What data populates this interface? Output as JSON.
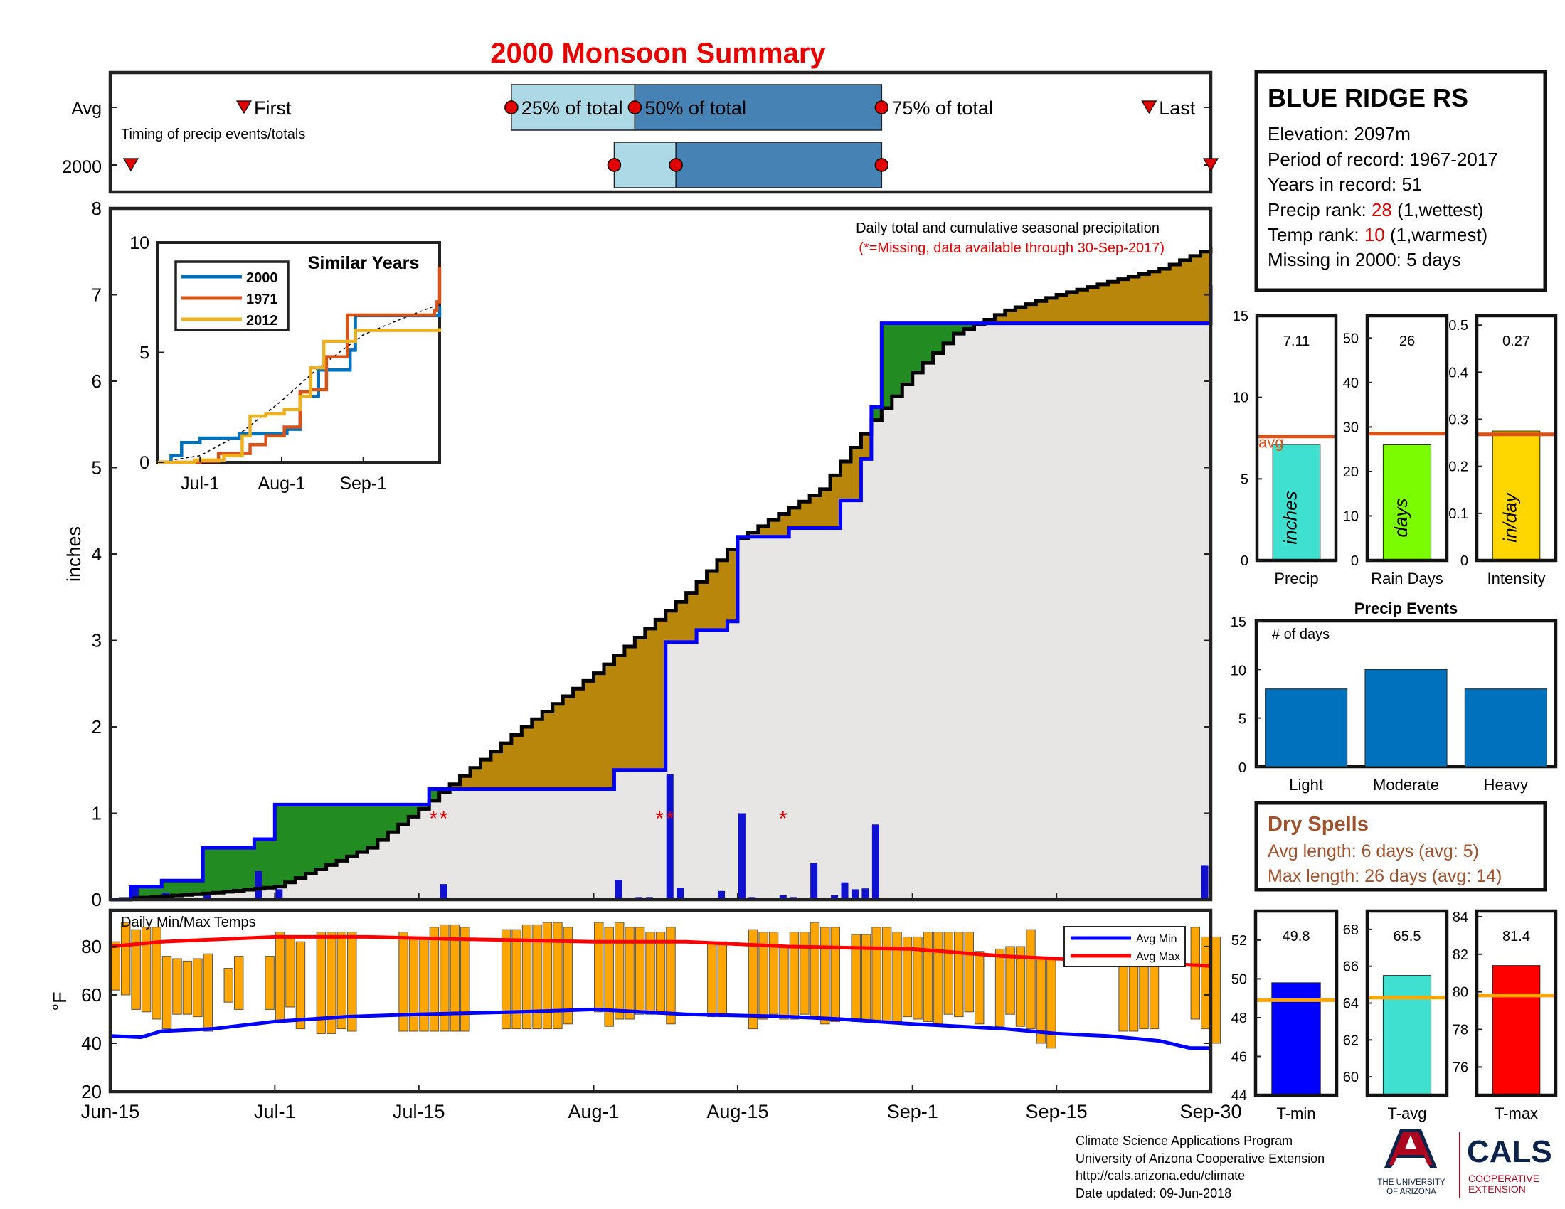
{
  "title": "2000 Monsoon Summary",
  "footer": {
    "line1": "Climate Science Applications Program",
    "line2": "University of Arizona Cooperative Extension",
    "line3": "http://cals.arizona.edu/climate",
    "line4": "Date updated: 09-Jun-2018",
    "logo_text_1": "THE UNIVERSITY",
    "logo_text_2": "OF ARIZONA",
    "logo_cals": "CALS",
    "logo_coop_1": "COOPERATIVE",
    "logo_coop_2": "EXTENSION"
  },
  "colors": {
    "title_red": "#e60000",
    "light_blue": "#add8e6",
    "steel_blue": "#4682b4",
    "green_fill": "#228b22",
    "brown_fill": "#b8860b",
    "bg_gray": "#e8e6e5",
    "blue_line": "#0000ff",
    "bar_blue": "#1010d0",
    "orange": "#ffa500",
    "avg_line": "#d95319",
    "precip_bar": "#40e0d0",
    "days_bar": "#7cfc00",
    "intensity_bar": "#ffd700",
    "events_bar": "#0072bd",
    "dry_spell_brown": "#a0522d",
    "arizona_red": "#ab0520",
    "arizona_navy": "#0c234b"
  },
  "chart_data": [
    {
      "id": "timing",
      "type": "timeline",
      "rows": [
        "Avg",
        "2000"
      ],
      "subtitle": "Timing of precip events/totals",
      "labels": {
        "first": "First",
        "q25": "25% of total",
        "q50": "50% of total",
        "q75": "75% of total",
        "last": "Last"
      },
      "avg": {
        "first": "2000-06-28",
        "q25": "2000-07-24",
        "q50": "2000-08-05",
        "q75": "2000-08-29",
        "last": "2000-09-24"
      },
      "year": {
        "first": "2000-06-17",
        "q25": "2000-08-03",
        "q50": "2000-08-09",
        "q75": "2000-08-29",
        "last": "2000-09-30"
      }
    },
    {
      "id": "cumulative",
      "type": "area",
      "ylabel": "inches",
      "ylim": [
        0,
        8
      ],
      "yticks": [
        0,
        1,
        2,
        3,
        4,
        5,
        6,
        7,
        8
      ],
      "xlim": [
        "2000-06-15",
        "2000-09-30"
      ],
      "xticks": [
        "Jun-15",
        "Jul-1",
        "Jul-15",
        "Aug-1",
        "Aug-15",
        "Sep-1",
        "Sep-15",
        "Sep-30"
      ],
      "xtick_dates": [
        "2000-06-15",
        "2000-07-01",
        "2000-07-15",
        "2000-08-01",
        "2000-08-15",
        "2000-09-01",
        "2000-09-15",
        "2000-09-30"
      ],
      "annotation": "Daily total and cumulative seasonal precipitation",
      "annotation_missing": "(*=Missing, data available through 30-Sep-2017)",
      "average_cumulative": {
        "x": [
          "2000-06-15",
          "2000-06-25",
          "2000-07-01",
          "2000-07-10",
          "2000-07-15",
          "2000-07-25",
          "2000-08-01",
          "2000-08-10",
          "2000-08-15",
          "2000-08-23",
          "2000-08-28",
          "2000-09-01",
          "2000-09-05",
          "2000-09-10",
          "2000-09-15",
          "2000-09-20",
          "2000-09-25",
          "2000-09-30"
        ],
        "y": [
          0.0,
          0.08,
          0.15,
          0.6,
          1.05,
          2.0,
          2.62,
          3.55,
          4.18,
          4.75,
          5.55,
          6.1,
          6.55,
          6.82,
          7.0,
          7.15,
          7.3,
          7.55
        ]
      },
      "year_cumulative": {
        "x": [
          "2000-06-15",
          "2000-06-17",
          "2000-06-20",
          "2000-06-24",
          "2000-06-29",
          "2000-07-01",
          "2000-07-14",
          "2000-07-16",
          "2000-08-03",
          "2000-08-08",
          "2000-08-11",
          "2000-08-14",
          "2000-08-15",
          "2000-08-20",
          "2000-08-25",
          "2000-08-27",
          "2000-08-28",
          "2000-08-29",
          "2000-09-29",
          "2000-09-30"
        ],
        "y": [
          0.0,
          0.15,
          0.22,
          0.6,
          0.7,
          1.1,
          1.1,
          1.28,
          1.5,
          2.98,
          3.12,
          3.22,
          4.2,
          4.3,
          4.62,
          5.1,
          5.7,
          6.67,
          6.67,
          7.11
        ]
      },
      "daily_precip": {
        "x": [
          "2000-06-17",
          "2000-06-18",
          "2000-06-20",
          "2000-06-24",
          "2000-06-29",
          "2000-07-01",
          "2000-07-17",
          "2000-08-03",
          "2000-08-05",
          "2000-08-06",
          "2000-08-08",
          "2000-08-09",
          "2000-08-13",
          "2000-08-15",
          "2000-08-16",
          "2000-08-19",
          "2000-08-20",
          "2000-08-22",
          "2000-08-24",
          "2000-08-25",
          "2000-08-26",
          "2000-08-27",
          "2000-08-28",
          "2000-09-29"
        ],
        "y": [
          0.15,
          0.03,
          0.08,
          0.05,
          0.33,
          0.12,
          0.18,
          0.23,
          0.03,
          0.03,
          1.45,
          0.14,
          0.1,
          1.0,
          0.03,
          0.05,
          0.03,
          0.42,
          0.05,
          0.2,
          0.12,
          0.13,
          0.87,
          0.4
        ]
      },
      "missing_days": [
        "2000-07-16",
        "2000-07-17",
        "2000-08-07",
        "2000-08-08",
        "2000-08-19"
      ],
      "missing_marker": "*"
    },
    {
      "id": "similar_years",
      "type": "line",
      "title": "Similar Years",
      "ylim": [
        0,
        10
      ],
      "yticks": [
        0,
        5,
        10
      ],
      "xticks": [
        "Jul-1",
        "Aug-1",
        "Sep-1"
      ],
      "xtick_dates": [
        "2000-07-01",
        "2000-08-01",
        "2000-09-01"
      ],
      "xlim": [
        "2000-06-15",
        "2000-09-30"
      ],
      "series": [
        {
          "name": "2000",
          "color": "#0072bd",
          "x": [
            "2000-06-15",
            "2000-06-20",
            "2000-06-24",
            "2000-07-01",
            "2000-07-14",
            "2000-07-16",
            "2000-08-03",
            "2000-08-08",
            "2000-08-15",
            "2000-08-27",
            "2000-08-29",
            "2000-09-29",
            "2000-09-30"
          ],
          "y": [
            0,
            0.3,
            0.9,
            1.1,
            1.1,
            1.3,
            1.5,
            3.0,
            4.2,
            5.1,
            6.67,
            6.67,
            7.11
          ]
        },
        {
          "name": "1971",
          "color": "#d95319",
          "x": [
            "2000-06-15",
            "2000-07-01",
            "2000-07-08",
            "2000-07-20",
            "2000-07-26",
            "2000-08-02",
            "2000-08-08",
            "2000-08-12",
            "2000-08-18",
            "2000-08-26",
            "2000-09-28",
            "2000-09-29",
            "2000-09-30"
          ],
          "y": [
            0,
            0.05,
            0.4,
            0.8,
            1.2,
            1.6,
            3.2,
            3.3,
            4.8,
            6.7,
            6.9,
            7.3,
            8.9
          ]
        },
        {
          "name": "2012",
          "color": "#edb120",
          "x": [
            "2000-06-15",
            "2000-06-29",
            "2000-07-10",
            "2000-07-17",
            "2000-07-20",
            "2000-07-26",
            "2000-08-02",
            "2000-08-08",
            "2000-08-12",
            "2000-08-17",
            "2000-08-29",
            "2000-09-30"
          ],
          "y": [
            0,
            0.1,
            0.3,
            1.2,
            2.1,
            2.2,
            2.4,
            3.0,
            4.3,
            5.5,
            6.0,
            6.1
          ]
        }
      ],
      "average_dashed": {
        "x": [
          "2000-06-15",
          "2000-07-01",
          "2000-07-15",
          "2000-08-01",
          "2000-08-15",
          "2000-09-01",
          "2000-09-15",
          "2000-09-30"
        ],
        "y": [
          0,
          0.3,
          1.2,
          2.8,
          4.3,
          5.8,
          6.5,
          7.2
        ]
      }
    },
    {
      "id": "temps",
      "type": "bar",
      "title": "Daily Min/Max Temps",
      "ylabel": "°F",
      "ylim": [
        20,
        95
      ],
      "yticks": [
        20,
        40,
        60,
        80
      ],
      "legend": [
        "Avg Min",
        "Avg Max"
      ],
      "legend_position": "top-right",
      "avg_min": {
        "x": [
          "2000-06-15",
          "2000-06-18",
          "2000-06-20",
          "2000-06-25",
          "2000-07-01",
          "2000-07-08",
          "2000-07-15",
          "2000-07-25",
          "2000-08-01",
          "2000-08-10",
          "2000-08-20",
          "2000-08-25",
          "2000-09-01",
          "2000-09-10",
          "2000-09-15",
          "2000-09-20",
          "2000-09-25",
          "2000-09-28",
          "2000-09-30"
        ],
        "y": [
          43,
          42.5,
          45,
          46,
          49,
          51,
          52,
          53,
          54,
          52,
          51,
          50,
          48,
          46,
          44,
          43,
          41,
          38,
          38
        ]
      },
      "avg_max": {
        "x": [
          "2000-06-15",
          "2000-06-20",
          "2000-07-01",
          "2000-07-10",
          "2000-07-20",
          "2000-08-01",
          "2000-08-10",
          "2000-08-20",
          "2000-09-01",
          "2000-09-10",
          "2000-09-20",
          "2000-09-25",
          "2000-09-30"
        ],
        "y": [
          80,
          82,
          84,
          84,
          83,
          82,
          82,
          80,
          79,
          76,
          74,
          73,
          72
        ]
      },
      "daily_min": [
        62,
        60,
        54,
        53,
        50,
        46,
        52,
        52,
        51,
        45,
        50,
        57,
        54,
        null,
        null,
        54,
        49,
        55,
        46,
        null,
        44,
        44,
        46,
        45,
        null,
        null,
        null,
        null,
        45,
        45,
        45,
        45,
        45,
        45,
        45,
        null,
        null,
        null,
        46,
        46,
        46,
        46,
        46,
        46,
        48,
        null,
        null,
        53,
        47,
        50,
        50,
        52,
        52,
        52,
        48,
        null,
        null,
        null,
        51,
        51,
        null,
        null,
        46,
        50,
        52,
        50,
        50,
        52,
        50,
        48,
        49,
        null,
        49,
        49,
        49,
        49,
        49,
        51,
        50,
        49,
        48,
        52,
        51,
        53,
        48,
        null,
        47,
        52,
        47,
        46,
        40,
        38,
        null,
        null,
        null,
        null,
        null,
        null,
        45,
        45,
        46,
        46,
        null,
        null,
        null,
        50,
        46,
        40,
        null,
        null,
        null
      ],
      "daily_max": [
        82,
        90,
        87,
        88,
        88,
        76,
        75,
        74,
        75,
        77,
        null,
        71,
        76,
        78,
        null,
        76,
        86,
        84,
        82,
        null,
        86,
        86,
        86,
        86,
        null,
        null,
        null,
        null,
        86,
        84,
        84,
        88,
        89,
        89,
        88,
        null,
        null,
        null,
        87,
        87,
        89,
        89,
        90,
        90,
        88,
        null,
        null,
        90,
        88,
        90,
        88,
        88,
        86,
        86,
        88,
        null,
        null,
        null,
        82,
        82,
        null,
        null,
        87,
        86,
        86,
        80,
        86,
        86,
        90,
        88,
        88,
        null,
        85,
        85,
        88,
        88,
        86,
        84,
        84,
        86,
        86,
        86,
        86,
        86,
        78,
        null,
        79,
        80,
        80,
        87,
        75,
        75,
        null,
        null,
        null,
        null,
        null,
        null,
        82,
        82,
        86,
        82,
        null,
        null,
        null,
        88,
        84,
        84,
        null,
        null,
        null
      ],
      "xticks": [
        "Jun-15",
        "Jul-1",
        "Jul-15",
        "Aug-1",
        "Aug-15",
        "Sep-1",
        "Sep-15",
        "Sep-30"
      ]
    },
    {
      "id": "station_stats",
      "type": "table",
      "station": "BLUE RIDGE RS",
      "elevation": "Elevation: 2097m",
      "period": "Period of record: 1967-2017",
      "years": "Years in record: 51",
      "precip_rank_label": "Precip rank: ",
      "precip_rank_value": "28",
      "precip_rank_note": " (1,wettest)",
      "temp_rank_label": "Temp rank: ",
      "temp_rank_value": "10",
      "temp_rank_note": " (1,warmest)",
      "missing": "Missing in 2000: 5 days"
    },
    {
      "id": "precip_total",
      "type": "bar",
      "categories": [
        "Precip"
      ],
      "values": [
        7.11
      ],
      "value_label": "7.11",
      "average": 7.6,
      "avg_label": "avg",
      "bar_text": "inches",
      "ylim": [
        0,
        15
      ],
      "yticks": [
        0,
        5,
        10,
        15
      ]
    },
    {
      "id": "rain_days",
      "type": "bar",
      "categories": [
        "Rain Days"
      ],
      "values": [
        26
      ],
      "value_label": "26",
      "average": 28.5,
      "bar_text": "days",
      "ylim": [
        0,
        55
      ],
      "yticks": [
        0,
        10,
        20,
        30,
        40,
        50
      ]
    },
    {
      "id": "intensity",
      "type": "bar",
      "categories": [
        "Intensity"
      ],
      "values": [
        0.275
      ],
      "value_label": "0.27",
      "average": 0.268,
      "bar_text": "in/day",
      "ylim": [
        0,
        0.52
      ],
      "yticks": [
        0,
        0.1,
        0.2,
        0.3,
        0.4,
        0.5
      ]
    },
    {
      "id": "precip_events",
      "type": "bar",
      "title": "Precip Events",
      "annotation": "# of days",
      "categories": [
        "Light",
        "Moderate",
        "Heavy"
      ],
      "values": [
        8,
        10,
        8
      ],
      "ylim": [
        0,
        15
      ],
      "yticks": [
        0,
        5,
        10,
        15
      ]
    },
    {
      "id": "dry_spells",
      "type": "table",
      "title": "Dry Spells",
      "avg_length": "Avg length: 6 days (avg: 5)",
      "max_length": "Max length: 26 days (avg: 14)"
    },
    {
      "id": "tmin",
      "type": "bar",
      "categories": [
        "T-min"
      ],
      "values": [
        49.8
      ],
      "value_label": "49.8",
      "average": 48.9,
      "ylim": [
        44,
        53.5
      ],
      "yticks": [
        44,
        46,
        48,
        50,
        52
      ]
    },
    {
      "id": "tavg",
      "type": "bar",
      "categories": [
        "T-avg"
      ],
      "values": [
        65.5
      ],
      "value_label": "65.5",
      "average": 64.3,
      "ylim": [
        59,
        69
      ],
      "yticks": [
        60,
        62,
        64,
        66,
        68
      ]
    },
    {
      "id": "tmax",
      "type": "bar",
      "categories": [
        "T-max"
      ],
      "values": [
        81.4
      ],
      "value_label": "81.4",
      "average": 79.8,
      "ylim": [
        74.5,
        84.3
      ],
      "yticks": [
        76,
        78,
        80,
        82,
        84
      ]
    }
  ]
}
